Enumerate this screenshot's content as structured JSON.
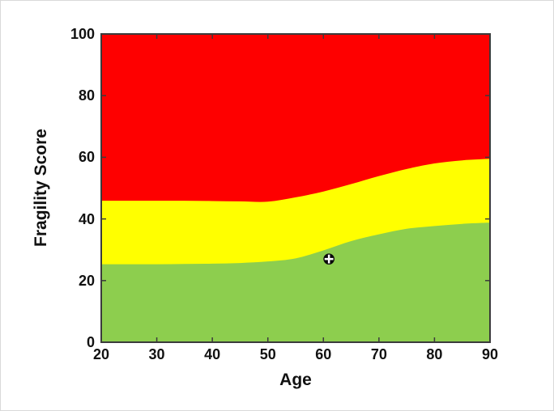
{
  "chart_data": {
    "type": "area",
    "title": "",
    "xlabel": "Age",
    "ylabel": "Fragility Score",
    "xlim": [
      20,
      90
    ],
    "ylim": [
      0,
      100
    ],
    "xticks": [
      20,
      30,
      40,
      50,
      60,
      70,
      80,
      90
    ],
    "yticks": [
      0,
      20,
      40,
      60,
      80,
      100
    ],
    "grid": false,
    "legend_position": "none",
    "x": [
      20,
      25,
      30,
      35,
      40,
      45,
      50,
      55,
      60,
      65,
      70,
      75,
      80,
      85,
      90
    ],
    "series": [
      {
        "name": "green-yellow boundary (top of low-fragility zone)",
        "values": [
          25.3,
          25.3,
          25.3,
          25.4,
          25.5,
          25.7,
          26.2,
          27.2,
          29.8,
          32.8,
          35.0,
          36.8,
          37.7,
          38.4,
          38.8
        ]
      },
      {
        "name": "yellow-red boundary (top of medium-fragility zone)",
        "values": [
          45.9,
          45.9,
          45.9,
          45.9,
          45.8,
          45.7,
          45.6,
          47.0,
          48.9,
          51.3,
          53.9,
          56.2,
          58.0,
          59.0,
          59.5
        ]
      }
    ],
    "regions": [
      {
        "name": "low-fragility-zone",
        "color": "#8DCE4E"
      },
      {
        "name": "medium-fragility-zone",
        "color": "#FFFF00"
      },
      {
        "name": "high-fragility-zone",
        "color": "#FE0000"
      }
    ],
    "marker": {
      "x": 61,
      "y": 27,
      "style": "circle-plus",
      "fill": "#0a0a0a",
      "cross_color": "#ffffff"
    },
    "axis_color": "#3b3b3b",
    "tick_label_color": "#111111",
    "background_color": "#ffffff"
  }
}
